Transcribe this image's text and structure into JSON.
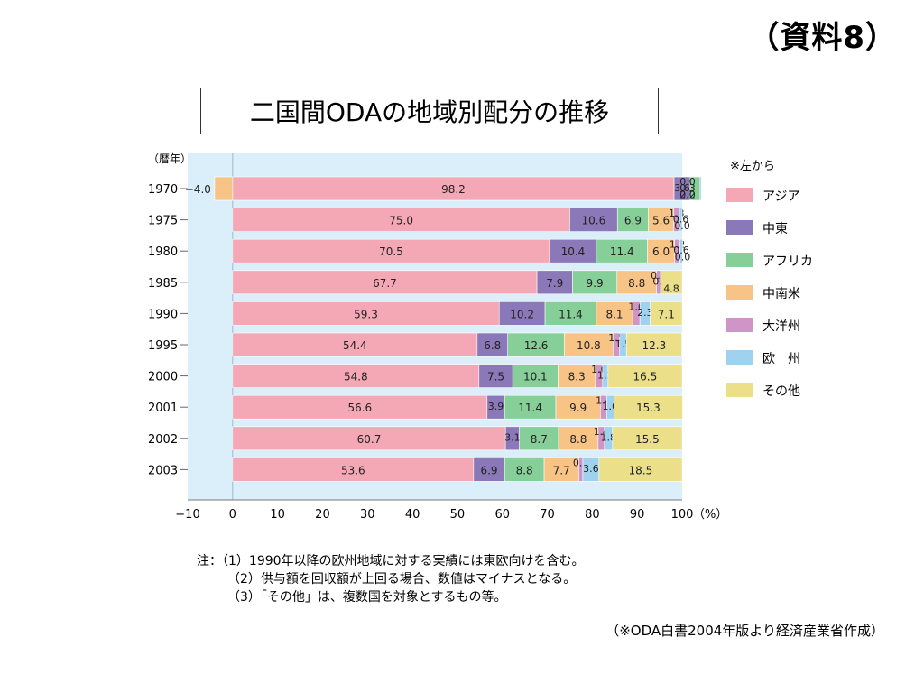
{
  "doc_label": "（資料8）",
  "title": "二国間ODAの地域別配分の推移",
  "notes": [
    "注：（1）1990年以降の欧州地域に対する実績には東欧向けを含む。",
    "（2）供与額を回収額が上回る場合、数値はマイナスとなる。",
    "（3）「その他」は、複数国を対象とするもの等。"
  ],
  "source": "（※ODA白書2004年版より経済産業省作成）",
  "chart_data": {
    "type": "bar",
    "stacked": true,
    "orientation": "horizontal",
    "ylabel": "（暦年）",
    "xunit": "（%）",
    "xlim": [
      -10,
      100
    ],
    "xticks": [
      -10,
      0,
      10,
      20,
      30,
      40,
      50,
      60,
      70,
      80,
      90,
      100
    ],
    "legend_note": "※左から",
    "legend_position": "right",
    "categories": [
      "1970",
      "1975",
      "1980",
      "1985",
      "1990",
      "1995",
      "2000",
      "2001",
      "2002",
      "2003"
    ],
    "series": [
      {
        "name": "アジア",
        "color": "#f4a7b5",
        "values": [
          98.2,
          75.0,
          70.5,
          67.7,
          59.3,
          54.4,
          54.8,
          56.6,
          60.7,
          53.6
        ]
      },
      {
        "name": "中東",
        "color": "#8b78b8",
        "values": [
          3.6,
          10.6,
          10.4,
          7.9,
          10.2,
          6.8,
          7.5,
          3.9,
          3.1,
          6.9
        ]
      },
      {
        "name": "アフリカ",
        "color": "#86cf98",
        "values": [
          2.2,
          6.9,
          11.4,
          9.9,
          11.4,
          12.6,
          10.1,
          11.4,
          8.7,
          8.8
        ]
      },
      {
        "name": "中南米",
        "color": "#f8c486",
        "values": [
          -4.0,
          5.6,
          6.0,
          8.8,
          8.1,
          10.8,
          8.3,
          9.9,
          8.8,
          7.7
        ]
      },
      {
        "name": "大洋州",
        "color": "#cf95c6",
        "values": [
          0.0,
          1.3,
          1.2,
          0.9,
          1.6,
          1.5,
          1.6,
          1.4,
          1.4,
          0.9
        ]
      },
      {
        "name": "欧　州",
        "color": "#9fd2ee",
        "values": [
          0.3,
          0.6,
          0.6,
          0.0,
          2.3,
          1.5,
          1.2,
          1.6,
          1.8,
          3.6
        ]
      },
      {
        "name": "その他",
        "color": "#ecdf8a",
        "values": [
          0.0,
          0.0,
          0.0,
          4.8,
          7.1,
          12.3,
          16.5,
          15.3,
          15.5,
          18.5
        ]
      }
    ]
  }
}
